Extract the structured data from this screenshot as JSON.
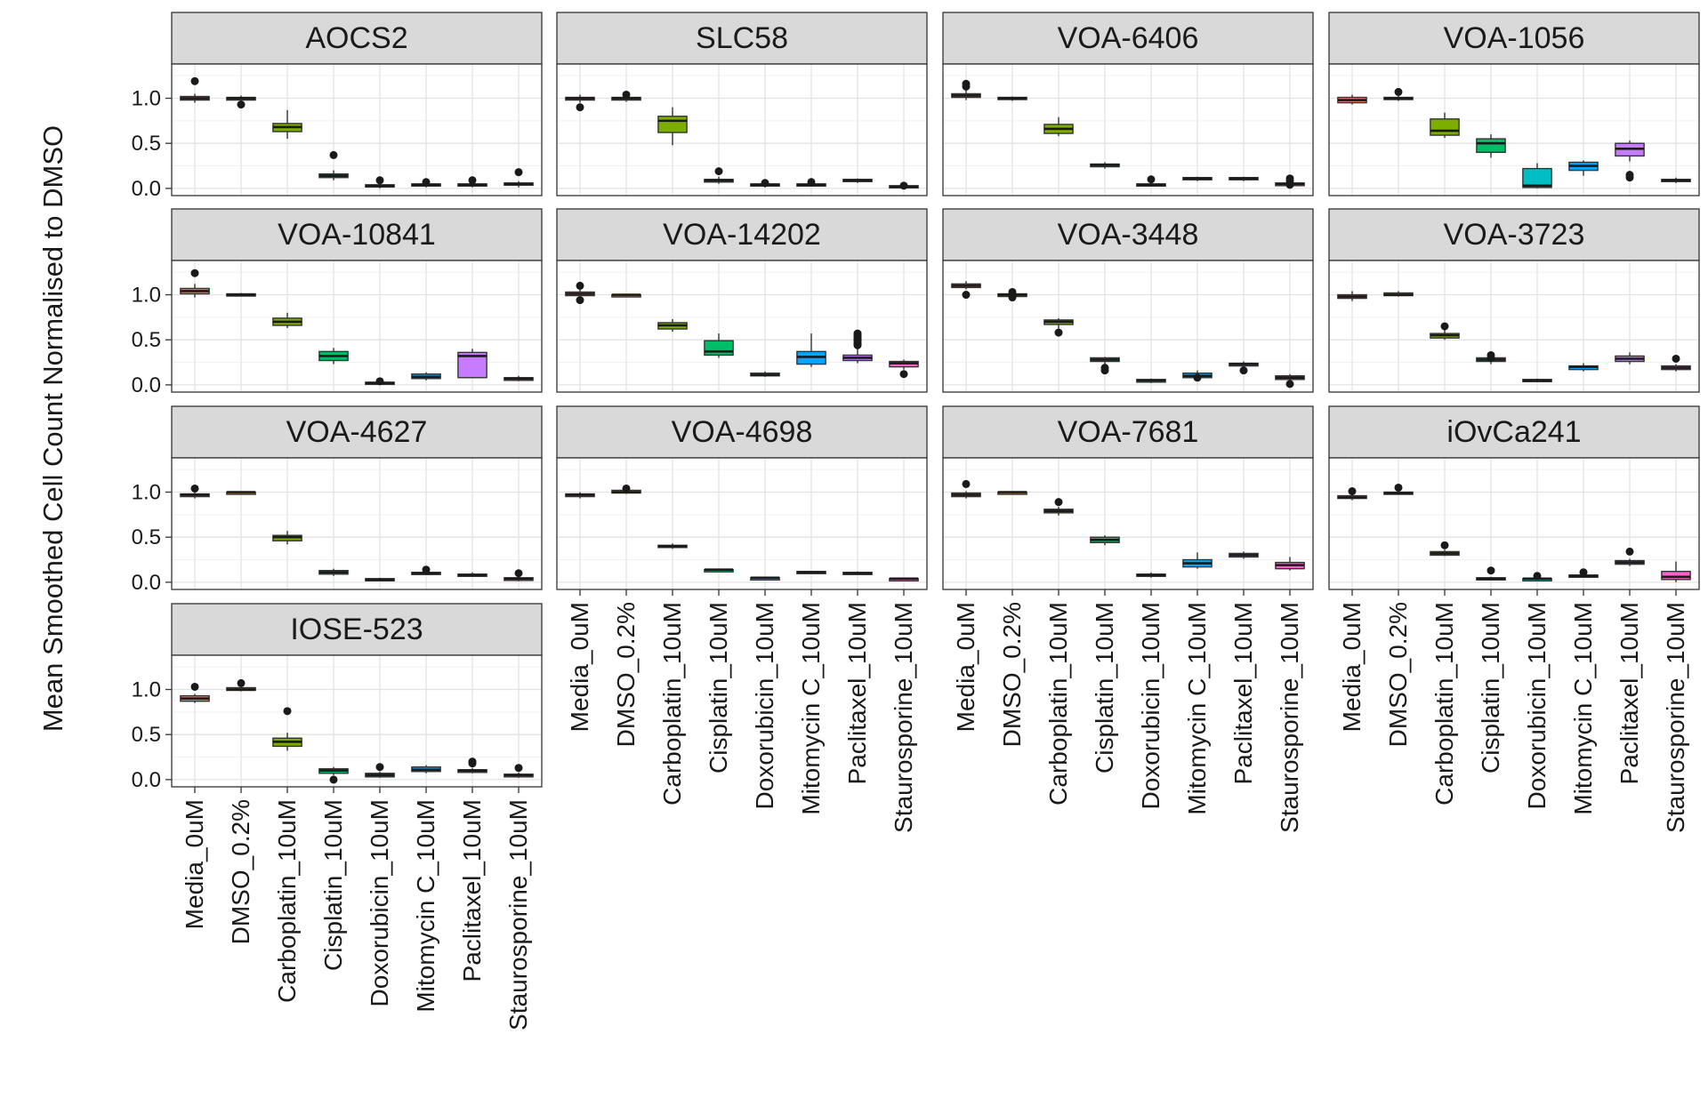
{
  "chart_data": {
    "type": "box",
    "ylabel": "Mean Smoothed Cell Count Normalised to DMSO",
    "xlabel": "",
    "ylim": [
      -0.08,
      1.38
    ],
    "yticks": [
      0.0,
      0.5,
      1.0
    ],
    "ytick_labels": [
      "0.0",
      "0.5",
      "1.0"
    ],
    "grid": true,
    "legend": "none",
    "categories": [
      "Media_0uM",
      "DMSO_0.2%",
      "Carboplatin_10uM",
      "Cisplatin_10uM",
      "Doxorubicin_10uM",
      "Mitomycin C_10uM",
      "Paclitaxel_10uM",
      "Staurosporine_10uM"
    ],
    "category_colors": [
      "#F8766D",
      "#CD9600",
      "#7CAE00",
      "#00BE67",
      "#00BFC4",
      "#00A9FF",
      "#C77CFF",
      "#FF61CC"
    ],
    "panels": [
      {
        "name": "AOCS2",
        "boxes": [
          [
            0.95,
            0.98,
            1.0,
            1.02,
            1.05
          ],
          [
            0.96,
            0.98,
            1.0,
            1.01,
            1.03
          ],
          [
            0.55,
            0.63,
            0.68,
            0.72,
            0.87
          ],
          [
            0.09,
            0.12,
            0.14,
            0.16,
            0.2
          ],
          [
            0.0,
            0.02,
            0.03,
            0.04,
            0.07
          ],
          [
            0.01,
            0.03,
            0.04,
            0.05,
            0.07
          ],
          [
            0.01,
            0.03,
            0.04,
            0.05,
            0.08
          ],
          [
            0.01,
            0.04,
            0.05,
            0.06,
            0.08
          ]
        ],
        "outliers": [
          [
            1.19
          ],
          [
            0.93
          ],
          [],
          [
            0.37
          ],
          [
            0.09
          ],
          [
            0.07
          ],
          [
            0.09
          ],
          [
            0.18
          ]
        ]
      },
      {
        "name": "SLC58",
        "boxes": [
          [
            0.95,
            0.98,
            1.0,
            1.01,
            1.04
          ],
          [
            0.96,
            0.98,
            1.0,
            1.01,
            1.04
          ],
          [
            0.48,
            0.62,
            0.75,
            0.8,
            0.9
          ],
          [
            0.05,
            0.07,
            0.09,
            0.1,
            0.13
          ],
          [
            0.01,
            0.03,
            0.04,
            0.05,
            0.07
          ],
          [
            0.02,
            0.03,
            0.04,
            0.05,
            0.07
          ],
          [
            0.06,
            0.08,
            0.09,
            0.1,
            0.11
          ],
          [
            0.0,
            0.01,
            0.02,
            0.03,
            0.05
          ]
        ],
        "outliers": [
          [
            0.9
          ],
          [
            1.04
          ],
          [],
          [
            0.19
          ],
          [
            0.06
          ],
          [
            0.07
          ],
          [],
          [
            0.03
          ]
        ]
      },
      {
        "name": "VOA-6406",
        "boxes": [
          [
            0.98,
            1.01,
            1.03,
            1.05,
            1.1
          ],
          [
            0.97,
            0.99,
            1.0,
            1.01,
            1.02
          ],
          [
            0.58,
            0.61,
            0.66,
            0.71,
            0.79
          ],
          [
            0.22,
            0.24,
            0.26,
            0.27,
            0.29
          ],
          [
            0.02,
            0.03,
            0.04,
            0.05,
            0.07
          ],
          [
            0.08,
            0.1,
            0.11,
            0.12,
            0.13
          ],
          [
            0.08,
            0.1,
            0.11,
            0.12,
            0.13
          ],
          [
            0.01,
            0.03,
            0.05,
            0.06,
            0.08
          ]
        ],
        "outliers": [
          [
            1.16,
            1.13
          ],
          [],
          [],
          [],
          [
            0.1
          ],
          [],
          [],
          [
            0.11,
            0.08,
            0.04
          ]
        ]
      },
      {
        "name": "VOA-1056",
        "boxes": [
          [
            0.93,
            0.95,
            0.98,
            1.01,
            1.04
          ],
          [
            0.97,
            0.99,
            1.0,
            1.01,
            1.03
          ],
          [
            0.56,
            0.59,
            0.64,
            0.77,
            0.84
          ],
          [
            0.34,
            0.4,
            0.5,
            0.55,
            0.6
          ],
          [
            0.0,
            0.01,
            0.03,
            0.22,
            0.28
          ],
          [
            0.14,
            0.2,
            0.25,
            0.29,
            0.31
          ],
          [
            0.3,
            0.36,
            0.44,
            0.5,
            0.53
          ],
          [
            0.06,
            0.08,
            0.09,
            0.1,
            0.12
          ]
        ],
        "outliers": [
          [],
          [
            1.07
          ],
          [],
          [],
          [],
          [],
          [
            0.15,
            0.12
          ],
          []
        ]
      },
      {
        "name": "VOA-10841",
        "boxes": [
          [
            0.97,
            1.01,
            1.04,
            1.07,
            1.12
          ],
          [
            0.98,
            0.99,
            1.0,
            1.01,
            1.02
          ],
          [
            0.63,
            0.66,
            0.7,
            0.74,
            0.8
          ],
          [
            0.23,
            0.27,
            0.32,
            0.37,
            0.41
          ],
          [
            0.0,
            0.01,
            0.02,
            0.03,
            0.05
          ],
          [
            0.05,
            0.07,
            0.09,
            0.12,
            0.14
          ],
          [
            0.08,
            0.08,
            0.32,
            0.36,
            0.4
          ],
          [
            0.04,
            0.05,
            0.07,
            0.08,
            0.1
          ]
        ],
        "outliers": [
          [
            1.24
          ],
          [],
          [],
          [],
          [
            0.04
          ],
          [],
          [],
          []
        ]
      },
      {
        "name": "VOA-14202",
        "boxes": [
          [
            0.96,
            0.99,
            1.01,
            1.03,
            1.06
          ],
          [
            0.98,
            0.99,
            1.0,
            1.0,
            1.01
          ],
          [
            0.59,
            0.62,
            0.66,
            0.69,
            0.73
          ],
          [
            0.3,
            0.33,
            0.37,
            0.49,
            0.57
          ],
          [
            0.09,
            0.1,
            0.11,
            0.13,
            0.15
          ],
          [
            0.2,
            0.23,
            0.31,
            0.37,
            0.57
          ],
          [
            0.24,
            0.27,
            0.3,
            0.33,
            0.41
          ],
          [
            0.17,
            0.2,
            0.24,
            0.26,
            0.28
          ]
        ],
        "outliers": [
          [
            1.1,
            0.94
          ],
          [],
          [],
          [],
          [],
          [],
          [
            0.57,
            0.55,
            0.53,
            0.51,
            0.49,
            0.47,
            0.45,
            0.44
          ],
          [
            0.12
          ]
        ]
      },
      {
        "name": "VOA-3448",
        "boxes": [
          [
            1.06,
            1.08,
            1.1,
            1.12,
            1.15
          ],
          [
            0.97,
            0.98,
            1.0,
            1.01,
            1.03
          ],
          [
            0.62,
            0.67,
            0.7,
            0.72,
            0.74
          ],
          [
            0.22,
            0.26,
            0.28,
            0.3,
            0.31
          ],
          [
            0.02,
            0.03,
            0.05,
            0.06,
            0.07
          ],
          [
            0.06,
            0.08,
            0.1,
            0.13,
            0.16
          ],
          [
            0.18,
            0.21,
            0.23,
            0.24,
            0.26
          ],
          [
            0.03,
            0.06,
            0.08,
            0.1,
            0.12
          ]
        ],
        "outliers": [
          [
            1.0
          ],
          [
            1.03,
            0.97
          ],
          [
            0.58
          ],
          [
            0.19,
            0.16
          ],
          [],
          [
            0.08
          ],
          [
            0.16
          ],
          [
            0.01
          ]
        ]
      },
      {
        "name": "VOA-3723",
        "boxes": [
          [
            0.93,
            0.96,
            0.98,
            1.0,
            1.04
          ],
          [
            0.98,
            0.99,
            1.0,
            1.02,
            1.04
          ],
          [
            0.5,
            0.52,
            0.55,
            0.57,
            0.61
          ],
          [
            0.23,
            0.26,
            0.28,
            0.3,
            0.33
          ],
          [
            0.03,
            0.04,
            0.05,
            0.06,
            0.07
          ],
          [
            0.15,
            0.17,
            0.2,
            0.21,
            0.24
          ],
          [
            0.23,
            0.26,
            0.29,
            0.32,
            0.36
          ],
          [
            0.15,
            0.17,
            0.19,
            0.21,
            0.23
          ]
        ],
        "outliers": [
          [],
          [],
          [
            0.65
          ],
          [
            0.33,
            0.3
          ],
          [],
          [],
          [],
          [
            0.29
          ]
        ]
      },
      {
        "name": "VOA-4627",
        "boxes": [
          [
            0.93,
            0.95,
            0.97,
            0.98,
            1.0
          ],
          [
            0.98,
            0.99,
            1.0,
            1.0,
            1.01
          ],
          [
            0.42,
            0.46,
            0.5,
            0.52,
            0.57
          ],
          [
            0.07,
            0.09,
            0.11,
            0.13,
            0.15
          ],
          [
            0.01,
            0.02,
            0.03,
            0.04,
            0.05
          ],
          [
            0.08,
            0.09,
            0.1,
            0.11,
            0.13
          ],
          [
            0.06,
            0.07,
            0.08,
            0.09,
            0.11
          ],
          [
            0.01,
            0.02,
            0.04,
            0.05,
            0.07
          ]
        ],
        "outliers": [
          [
            1.04
          ],
          [],
          [],
          [],
          [],
          [
            0.14
          ],
          [],
          [
            0.1
          ]
        ]
      },
      {
        "name": "VOA-4698",
        "boxes": [
          [
            0.93,
            0.95,
            0.97,
            0.98,
            1.0
          ],
          [
            0.98,
            0.99,
            1.0,
            1.02,
            1.04
          ],
          [
            0.37,
            0.39,
            0.4,
            0.41,
            0.43
          ],
          [
            0.12,
            0.13,
            0.14,
            0.14,
            0.15
          ],
          [
            0.03,
            0.04,
            0.05,
            0.05,
            0.06
          ],
          [
            0.1,
            0.11,
            0.11,
            0.12,
            0.12
          ],
          [
            0.08,
            0.09,
            0.1,
            0.11,
            0.12
          ],
          [
            0.02,
            0.03,
            0.04,
            0.04,
            0.05
          ]
        ],
        "outliers": [
          [],
          [
            1.04
          ],
          [],
          [],
          [],
          [],
          [],
          []
        ]
      },
      {
        "name": "VOA-7681",
        "boxes": [
          [
            0.93,
            0.95,
            0.97,
            0.99,
            1.01
          ],
          [
            0.99,
            1.0,
            1.0,
            1.0,
            1.01
          ],
          [
            0.74,
            0.77,
            0.79,
            0.81,
            0.84
          ],
          [
            0.41,
            0.44,
            0.47,
            0.5,
            0.52
          ],
          [
            0.05,
            0.07,
            0.08,
            0.09,
            0.11
          ],
          [
            0.15,
            0.17,
            0.21,
            0.25,
            0.33
          ],
          [
            0.26,
            0.28,
            0.3,
            0.32,
            0.34
          ],
          [
            0.13,
            0.15,
            0.19,
            0.22,
            0.28
          ]
        ],
        "outliers": [
          [
            1.09
          ],
          [],
          [
            0.89
          ],
          [],
          [],
          [],
          [],
          []
        ]
      },
      {
        "name": "iOvCa241",
        "boxes": [
          [
            0.91,
            0.93,
            0.94,
            0.96,
            0.99
          ],
          [
            0.97,
            0.98,
            0.99,
            1.0,
            1.03
          ],
          [
            0.29,
            0.3,
            0.32,
            0.34,
            0.36
          ],
          [
            0.02,
            0.03,
            0.04,
            0.05,
            0.06
          ],
          [
            0.02,
            0.03,
            0.04,
            0.04,
            0.06
          ],
          [
            0.05,
            0.06,
            0.07,
            0.08,
            0.09
          ],
          [
            0.18,
            0.2,
            0.22,
            0.24,
            0.26
          ],
          [
            0.0,
            0.03,
            0.06,
            0.12,
            0.23
          ]
        ],
        "outliers": [
          [
            1.01
          ],
          [
            1.05
          ],
          [
            0.41
          ],
          [
            0.13
          ],
          [
            0.07
          ],
          [
            0.11
          ],
          [
            0.34
          ],
          []
        ]
      },
      {
        "name": "IOSE-523",
        "boxes": [
          [
            0.85,
            0.87,
            0.9,
            0.93,
            0.95
          ],
          [
            0.98,
            0.99,
            1.0,
            1.02,
            1.04
          ],
          [
            0.32,
            0.37,
            0.42,
            0.46,
            0.52
          ],
          [
            0.05,
            0.07,
            0.1,
            0.12,
            0.14
          ],
          [
            0.02,
            0.03,
            0.05,
            0.07,
            0.09
          ],
          [
            0.07,
            0.09,
            0.11,
            0.14,
            0.16
          ],
          [
            0.07,
            0.08,
            0.1,
            0.11,
            0.13
          ],
          [
            0.02,
            0.03,
            0.05,
            0.06,
            0.08
          ]
        ],
        "outliers": [
          [
            1.03
          ],
          [
            1.07
          ],
          [
            0.76
          ],
          [
            0.0
          ],
          [
            0.14
          ],
          [],
          [
            0.2,
            0.18
          ],
          [
            0.13
          ]
        ]
      }
    ]
  }
}
